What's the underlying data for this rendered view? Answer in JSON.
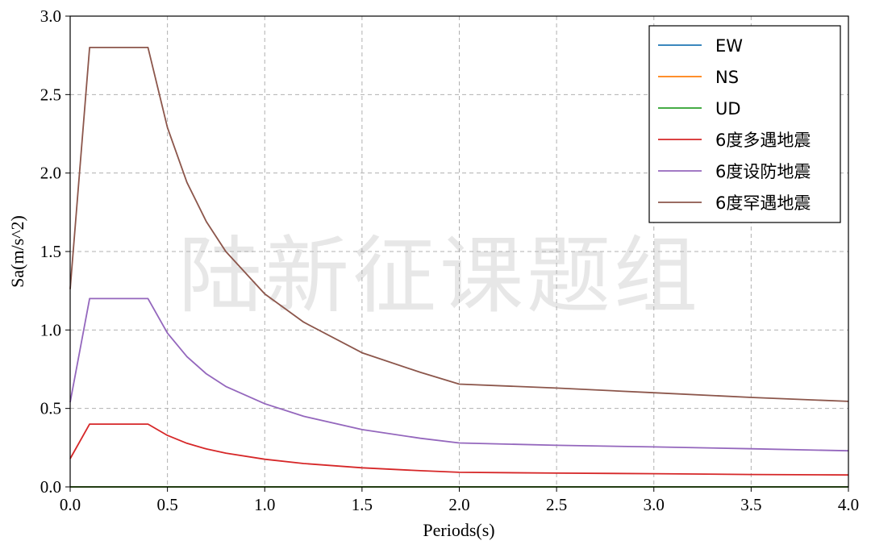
{
  "watermark": "陆新征课题组",
  "chart_data": {
    "type": "line",
    "xlabel": "Periods(s)",
    "ylabel": "Sa(m/s^2)",
    "xlim": [
      0.0,
      4.0
    ],
    "ylim": [
      0.0,
      3.0
    ],
    "x_ticks": [
      "0.0",
      "0.5",
      "1.0",
      "1.5",
      "2.0",
      "2.5",
      "3.0",
      "3.5",
      "4.0"
    ],
    "y_ticks": [
      "0.0",
      "0.5",
      "1.0",
      "1.5",
      "2.0",
      "2.5",
      "3.0"
    ],
    "grid": true,
    "legend_position": "top-right",
    "series": [
      {
        "name": "EW",
        "color": "#1f77b4",
        "x": [
          0.0,
          1.0,
          2.0,
          3.0,
          4.0
        ],
        "values": [
          0.0,
          0.0,
          0.0,
          0.0,
          0.0
        ]
      },
      {
        "name": "NS",
        "color": "#ff7f0e",
        "x": [
          0.0,
          1.0,
          2.0,
          3.0,
          4.0
        ],
        "values": [
          0.0,
          0.0,
          0.0,
          0.0,
          0.0
        ]
      },
      {
        "name": "UD",
        "color": "#2ca02c",
        "x": [
          0.0,
          1.0,
          2.0,
          3.0,
          4.0
        ],
        "values": [
          0.0,
          0.0,
          0.0,
          0.0,
          0.0
        ]
      },
      {
        "name": "6度多遇地震",
        "color": "#d62728",
        "x": [
          0.0,
          0.1,
          0.4,
          0.5,
          0.6,
          0.7,
          0.8,
          1.0,
          1.2,
          1.5,
          1.8,
          2.0,
          2.5,
          3.0,
          3.5,
          4.0
        ],
        "values": [
          0.18,
          0.4,
          0.4,
          0.328,
          0.278,
          0.242,
          0.215,
          0.176,
          0.149,
          0.122,
          0.103,
          0.093,
          0.088,
          0.084,
          0.079,
          0.076
        ]
      },
      {
        "name": "6度设防地震",
        "color": "#9467bd",
        "x": [
          0.0,
          0.1,
          0.4,
          0.5,
          0.6,
          0.7,
          0.8,
          1.0,
          1.2,
          1.5,
          1.8,
          2.0,
          2.5,
          3.0,
          3.5,
          4.0
        ],
        "values": [
          0.54,
          1.2,
          1.2,
          0.98,
          0.83,
          0.72,
          0.64,
          0.53,
          0.45,
          0.365,
          0.31,
          0.28,
          0.265,
          0.255,
          0.243,
          0.23
        ]
      },
      {
        "name": "6度罕遇地震",
        "color": "#8c564b",
        "x": [
          0.0,
          0.1,
          0.4,
          0.5,
          0.6,
          0.7,
          0.8,
          1.0,
          1.2,
          1.5,
          1.8,
          2.0,
          2.5,
          3.0,
          3.5,
          4.0
        ],
        "values": [
          1.26,
          2.8,
          2.8,
          2.29,
          1.94,
          1.69,
          1.5,
          1.23,
          1.05,
          0.855,
          0.73,
          0.655,
          0.63,
          0.6,
          0.57,
          0.545
        ]
      }
    ]
  }
}
